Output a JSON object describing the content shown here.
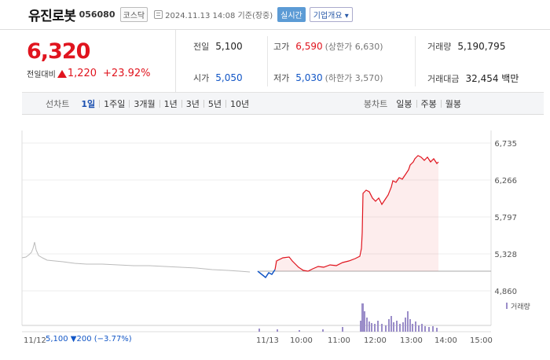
{
  "header": {
    "name": "유진로봇",
    "code": "056080",
    "market": "코스닥",
    "time": "2024.11.13 14:08 기준(장중)",
    "realtime": "실시간",
    "company_info": "기업개요 ▾"
  },
  "price": {
    "current": "6,320",
    "change_label": "전일대비",
    "change": "1,220",
    "change_pct": "+23.92%",
    "prev_label": "전일",
    "prev": "5,100",
    "high_label": "고가",
    "high": "6,590",
    "upper_limit": "(상한가 6,630)",
    "volume_label": "거래량",
    "volume": "5,190,795",
    "open_label": "시가",
    "open": "5,050",
    "low_label": "저가",
    "low": "5,030",
    "lower_limit": "(하한가 3,570)",
    "amount_label": "거래대금",
    "amount": "32,454 백만"
  },
  "tabs": {
    "line_label": "선차트",
    "line_items": [
      "1일",
      "1주일",
      "3개월",
      "1년",
      "3년",
      "5년",
      "10년"
    ],
    "active": "1일",
    "candle_label": "봉차트",
    "candle_items": [
      "일봉",
      "주봉",
      "월봉"
    ]
  },
  "chart_data": {
    "type": "line",
    "y_ticks": [
      "6,735",
      "6,266",
      "5,797",
      "5,328",
      "4,860"
    ],
    "x_ticks": [
      "11/12",
      "11/13",
      "10:00",
      "11:00",
      "12:00",
      "13:00",
      "14:00",
      "15:00"
    ],
    "prev_day_label": "11/12  5,100  ▼200  (−3.77%)",
    "volume_legend": "거래량",
    "colors": {
      "up": "#e0141e",
      "down": "#1256c6",
      "prev": "#bbbbbb",
      "volume": "#9b8ec9"
    }
  }
}
